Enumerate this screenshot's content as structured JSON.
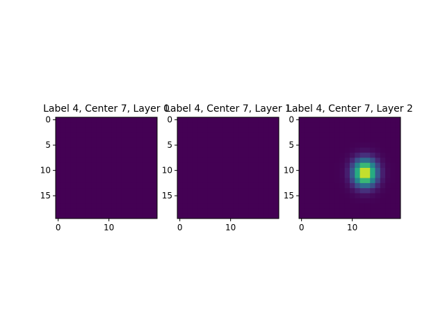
{
  "chart_data": [
    {
      "type": "heatmap",
      "title": "Label 4, Center 7, Layer 0",
      "x_ticks": [
        0,
        10
      ],
      "y_ticks": [
        0,
        5,
        10,
        15
      ],
      "xlim": [
        -0.5,
        19.5
      ],
      "ylim": [
        19.5,
        -0.5
      ],
      "grid": false,
      "colormap": "viridis",
      "shape": [
        20,
        20
      ],
      "values": "all zeros",
      "peak": null
    },
    {
      "type": "heatmap",
      "title": "Label 4, Center 7, Layer 1",
      "x_ticks": [
        0,
        10
      ],
      "y_ticks": [
        0,
        5,
        10,
        15
      ],
      "xlim": [
        -0.5,
        19.5
      ],
      "ylim": [
        19.5,
        -0.5
      ],
      "grid": false,
      "colormap": "viridis",
      "shape": [
        20,
        20
      ],
      "values": "all zeros",
      "peak": null
    },
    {
      "type": "heatmap",
      "title": "Label 4, Center 7, Layer 2",
      "x_ticks": [
        0,
        10
      ],
      "y_ticks": [
        0,
        5,
        10,
        15
      ],
      "xlim": [
        -0.5,
        19.5
      ],
      "ylim": [
        19.5,
        -0.5
      ],
      "grid": false,
      "colormap": "viridis",
      "shape": [
        20,
        20
      ],
      "peak": {
        "row": 10.5,
        "col": 12.5,
        "sigma_row": 1.8,
        "sigma_col": 1.6
      }
    }
  ]
}
